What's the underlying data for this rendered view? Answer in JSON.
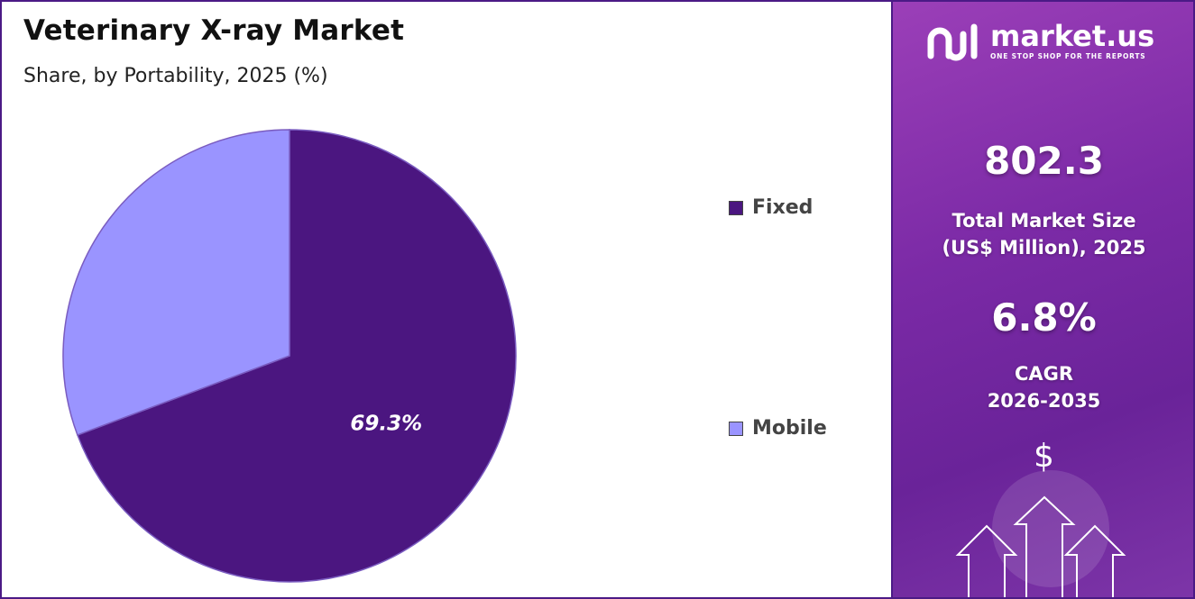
{
  "title": "Veterinary X-ray Market",
  "subtitle": "Share, by Portability, 2025 (%)",
  "chart_data": {
    "type": "pie",
    "categories": [
      "Fixed",
      "Mobile"
    ],
    "values": [
      69.3,
      30.7
    ],
    "data_labels": [
      "69.3%",
      ""
    ],
    "colors": [
      "#4b1680",
      "#9a94ff"
    ],
    "legend_placement": "right"
  },
  "legend": [
    {
      "label": "Fixed",
      "color": "#4b1680"
    },
    {
      "label": "Mobile",
      "color": "#9a94ff"
    }
  ],
  "side_panel": {
    "logo_name": "market.us",
    "logo_tagline": "ONE STOP SHOP FOR THE REPORTS",
    "market_size_value": "802.3",
    "market_size_label_1": "Total Market Size",
    "market_size_label_2": "(US$ Million), 2025",
    "cagr_value": "6.8%",
    "cagr_label_1": "CAGR",
    "cagr_label_2": "2026-2035",
    "dollar_symbol": "$",
    "icons": [
      "logo-mark-icon",
      "dollar-icon",
      "up-arrow-icon"
    ]
  }
}
